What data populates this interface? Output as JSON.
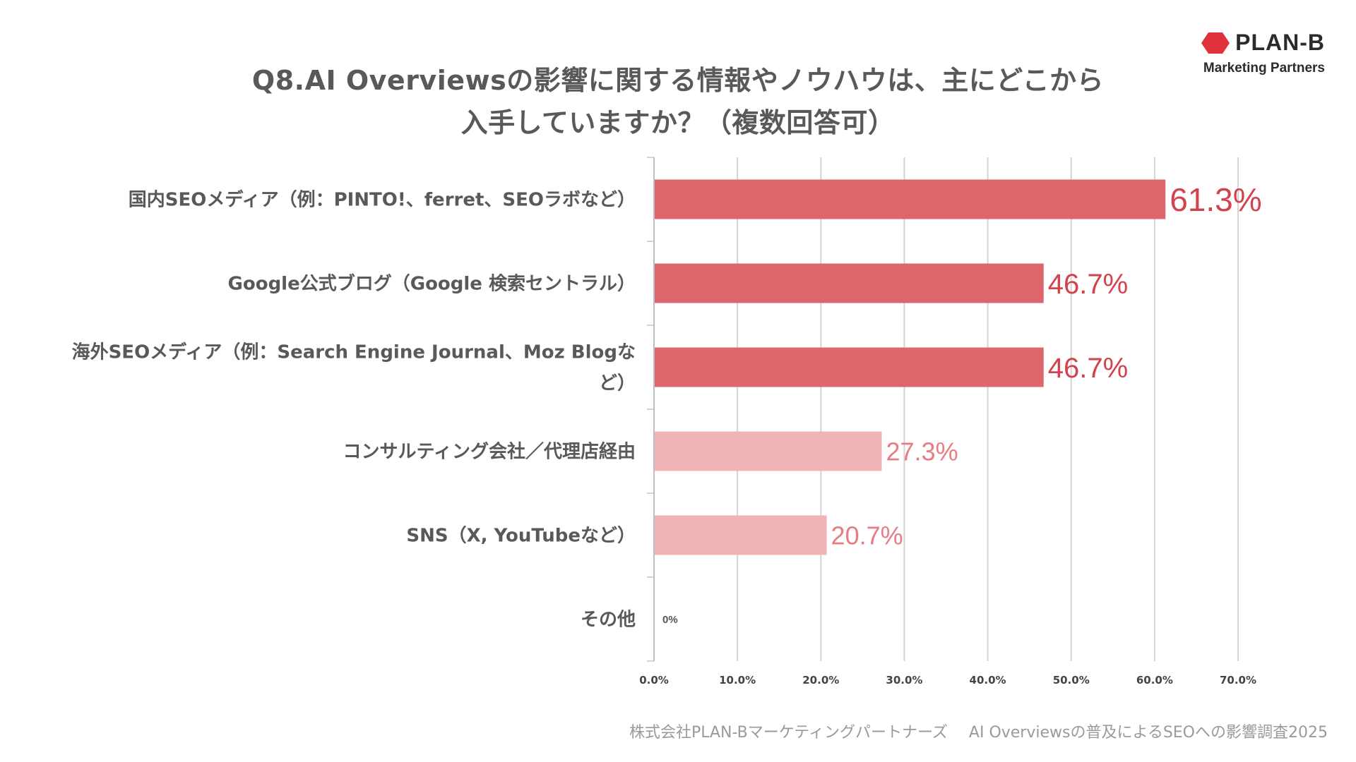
{
  "title": {
    "line1": "Q8.AI Overviewsの影響に関する情報やノウハウは、主にどこから",
    "line2": "入手していますか？（複数回答可）"
  },
  "logo": {
    "name": "PLAN-B",
    "subtitle": "Marketing Partners",
    "color": "#e0323c"
  },
  "footer": {
    "company": "株式会社PLAN-Bマーケティングパートナーズ",
    "survey": "AI Overviewsの普及によるSEOへの影響調査2025"
  },
  "chart_data": {
    "type": "bar",
    "orientation": "horizontal",
    "title": "Q8.AI Overviewsの影響に関する情報やノウハウは、主にどこから入手していますか？（複数回答可）",
    "categories": [
      "国内SEOメディア（例：PINTO!、ferret、SEOラボなど）",
      "Google公式ブログ（Google 検索セントラル）",
      "海外SEOメディア（例：Search Engine Journal、Moz Blogなど）",
      "コンサルティング会社／代理店経由",
      "SNS（X, YouTubeなど）",
      "その他"
    ],
    "category_lines": [
      [
        "国内SEOメディア（例：PINTO!、ferret、SEOラボなど）"
      ],
      [
        "Google公式ブログ（Google 検索セントラル）"
      ],
      [
        "海外SEOメディア（例：Search Engine Journal、Moz Blogな",
        "ど）"
      ],
      [
        "コンサルティング会社／代理店経由"
      ],
      [
        "SNS（X, YouTubeなど）"
      ],
      [
        "その他"
      ]
    ],
    "values": [
      61.3,
      46.7,
      46.7,
      27.3,
      20.7,
      0
    ],
    "value_labels": [
      "61.3%",
      "46.7%",
      "46.7%",
      "27.3%",
      "20.7%",
      "0%"
    ],
    "emphasis": [
      true,
      true,
      true,
      false,
      false,
      false
    ],
    "colors": {
      "strong_bar": "#dd666d",
      "strong_label": "#d2434d",
      "light_bar": "#f0b4b7",
      "light_label": "#e77c83",
      "zero_label": "#555555",
      "grid": "#d4d4d4"
    },
    "xlim": [
      0,
      70
    ],
    "xticks": [
      0,
      10,
      20,
      30,
      40,
      50,
      60,
      70
    ],
    "xtick_labels": [
      "0.0%",
      "10.0%",
      "20.0%",
      "30.0%",
      "40.0%",
      "50.0%",
      "60.0%",
      "70.0%"
    ],
    "xlabel": "",
    "ylabel": "",
    "grid": true,
    "legend": "none"
  }
}
